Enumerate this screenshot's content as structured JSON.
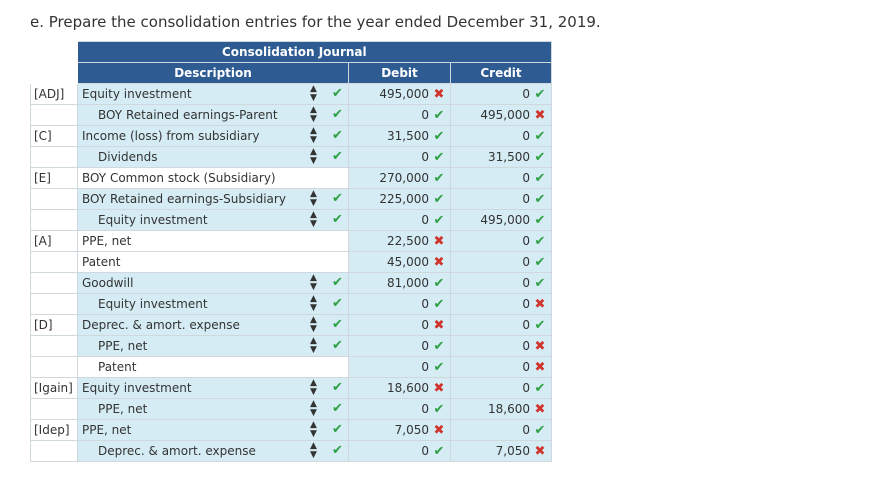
{
  "question": "e. Prepare the consolidation entries for the year ended December 31, 2019.",
  "journal": {
    "title": "Consolidation Journal",
    "headers": {
      "description": "Description",
      "debit": "Debit",
      "credit": "Credit"
    },
    "rows": [
      {
        "ref": "[ADJ]",
        "account": "Equity investment",
        "indent": false,
        "select": true,
        "acct_mark": "check",
        "debit": "495,000",
        "debit_mark": "x",
        "credit": "0",
        "credit_mark": "check"
      },
      {
        "ref": "",
        "account": "BOY Retained earnings-Parent",
        "indent": true,
        "select": true,
        "acct_mark": "check",
        "debit": "0",
        "debit_mark": "check",
        "credit": "495,000",
        "credit_mark": "x"
      },
      {
        "ref": "[C]",
        "account": "Income (loss) from subsidiary",
        "indent": false,
        "select": true,
        "acct_mark": "check",
        "debit": "31,500",
        "debit_mark": "check",
        "credit": "0",
        "credit_mark": "check"
      },
      {
        "ref": "",
        "account": "Dividends",
        "indent": true,
        "select": true,
        "acct_mark": "check",
        "debit": "0",
        "debit_mark": "check",
        "credit": "31,500",
        "credit_mark": "check"
      },
      {
        "ref": "[E]",
        "account": "BOY Common stock (Subsidiary)",
        "indent": false,
        "select": false,
        "acct_mark": "",
        "debit": "270,000",
        "debit_mark": "check",
        "credit": "0",
        "credit_mark": "check"
      },
      {
        "ref": "",
        "account": "BOY Retained earnings-Subsidiary",
        "indent": false,
        "select": true,
        "acct_mark": "check",
        "debit": "225,000",
        "debit_mark": "check",
        "credit": "0",
        "credit_mark": "check"
      },
      {
        "ref": "",
        "account": "Equity investment",
        "indent": true,
        "select": true,
        "acct_mark": "check",
        "debit": "0",
        "debit_mark": "check",
        "credit": "495,000",
        "credit_mark": "check"
      },
      {
        "ref": "[A]",
        "account": "PPE, net",
        "indent": false,
        "select": false,
        "acct_mark": "",
        "debit": "22,500",
        "debit_mark": "x",
        "credit": "0",
        "credit_mark": "check"
      },
      {
        "ref": "",
        "account": "Patent",
        "indent": false,
        "select": false,
        "acct_mark": "",
        "debit": "45,000",
        "debit_mark": "x",
        "credit": "0",
        "credit_mark": "check"
      },
      {
        "ref": "",
        "account": "Goodwill",
        "indent": false,
        "select": true,
        "acct_mark": "check",
        "debit": "81,000",
        "debit_mark": "check",
        "credit": "0",
        "credit_mark": "check"
      },
      {
        "ref": "",
        "account": "Equity investment",
        "indent": true,
        "select": true,
        "acct_mark": "check",
        "debit": "0",
        "debit_mark": "check",
        "credit": "0",
        "credit_mark": "x"
      },
      {
        "ref": "[D]",
        "account": "Deprec. & amort. expense",
        "indent": false,
        "select": true,
        "acct_mark": "check",
        "debit": "0",
        "debit_mark": "x",
        "credit": "0",
        "credit_mark": "check"
      },
      {
        "ref": "",
        "account": "PPE, net",
        "indent": true,
        "select": true,
        "acct_mark": "check",
        "debit": "0",
        "debit_mark": "check",
        "credit": "0",
        "credit_mark": "x"
      },
      {
        "ref": "",
        "account": "Patent",
        "indent": true,
        "select": false,
        "acct_mark": "",
        "debit": "0",
        "debit_mark": "check",
        "credit": "0",
        "credit_mark": "x"
      },
      {
        "ref": "[Igain]",
        "account": "Equity investment",
        "indent": false,
        "select": true,
        "acct_mark": "check",
        "debit": "18,600",
        "debit_mark": "x",
        "credit": "0",
        "credit_mark": "check"
      },
      {
        "ref": "",
        "account": "PPE, net",
        "indent": true,
        "select": true,
        "acct_mark": "check",
        "debit": "0",
        "debit_mark": "check",
        "credit": "18,600",
        "credit_mark": "x"
      },
      {
        "ref": "[Idep]",
        "account": "PPE, net",
        "indent": false,
        "select": true,
        "acct_mark": "check",
        "debit": "7,050",
        "debit_mark": "x",
        "credit": "0",
        "credit_mark": "check"
      },
      {
        "ref": "",
        "account": "Deprec. & amort. expense",
        "indent": true,
        "select": true,
        "acct_mark": "check",
        "debit": "0",
        "debit_mark": "check",
        "credit": "7,050",
        "credit_mark": "x"
      }
    ]
  },
  "marks": {
    "check": "✔",
    "x": "✖"
  },
  "colors": {
    "header": "#2e5c92",
    "cell": "#d5ecf4",
    "check": "#2ea043",
    "x": "#d0342c"
  }
}
